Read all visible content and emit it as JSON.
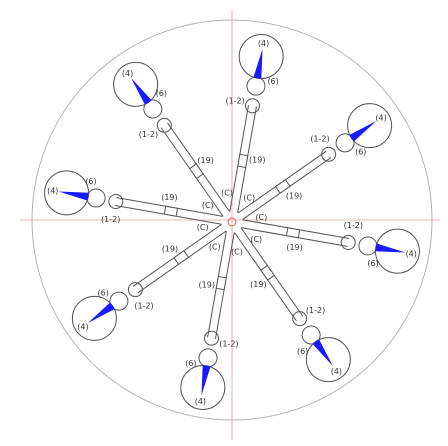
{
  "colors": {
    "background": "#ffffff",
    "frame": "#b4b4b4",
    "axis": "#e0a0a0",
    "arm": "#555555",
    "center": "#e06060",
    "tip": "#1a1aff"
  },
  "labels": {
    "disc": "(4)",
    "collar": "(6)",
    "link": "(1-2)",
    "joint": "(19)",
    "center": "(C)"
  },
  "arm_count": 8
}
